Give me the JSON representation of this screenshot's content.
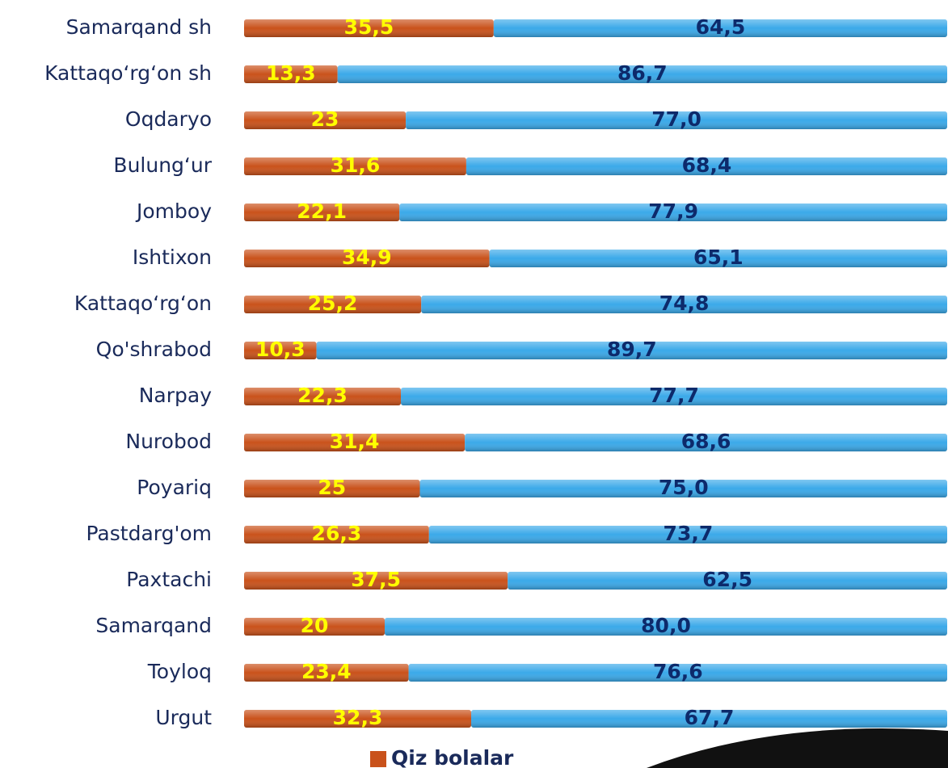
{
  "chart_data": {
    "type": "stacked_barh",
    "categories": [
      "Samarqand sh",
      "Kattaqo‘rg‘on sh",
      "Oqdaryo",
      "Bulung‘ur",
      "Jomboy",
      "Ishtixon",
      "Kattaqo‘rg‘on",
      "Qo'shrabod",
      "Narpay",
      "Nurobod",
      "Poyariq",
      "Pastdarg'om",
      "Paxtachi",
      "Samarqand",
      "Toyloq",
      "Urgut"
    ],
    "series": [
      {
        "name": "Qiz bolalar",
        "color": "#c9521b",
        "values": [
          35.5,
          13.3,
          23,
          31.6,
          22.1,
          34.9,
          25.2,
          10.3,
          22.3,
          31.4,
          25,
          26.3,
          37.5,
          20,
          23.4,
          32.3
        ],
        "value_labels": [
          "35,5",
          "13,3",
          "23",
          "31,6",
          "22,1",
          "34,9",
          "25,2",
          "10,3",
          "22,3",
          "31,4",
          "25",
          "26,3",
          "37,5",
          "20",
          "23,4",
          "32,3"
        ]
      },
      {
        "color": "#3ba9e9",
        "values": [
          64.5,
          86.7,
          77.0,
          68.4,
          77.9,
          65.1,
          74.8,
          89.7,
          77.7,
          68.6,
          75.0,
          73.7,
          62.5,
          80.0,
          76.6,
          67.7
        ],
        "value_labels": [
          "64,5",
          "86,7",
          "77,0",
          "68,4",
          "77,9",
          "65,1",
          "74,8",
          "89,7",
          "77,7",
          "68,6",
          "75,0",
          "73,7",
          "62,5",
          "80,0",
          "76,6",
          "67,7"
        ]
      }
    ],
    "xlim": [
      0,
      100
    ],
    "legend": "bottom"
  }
}
